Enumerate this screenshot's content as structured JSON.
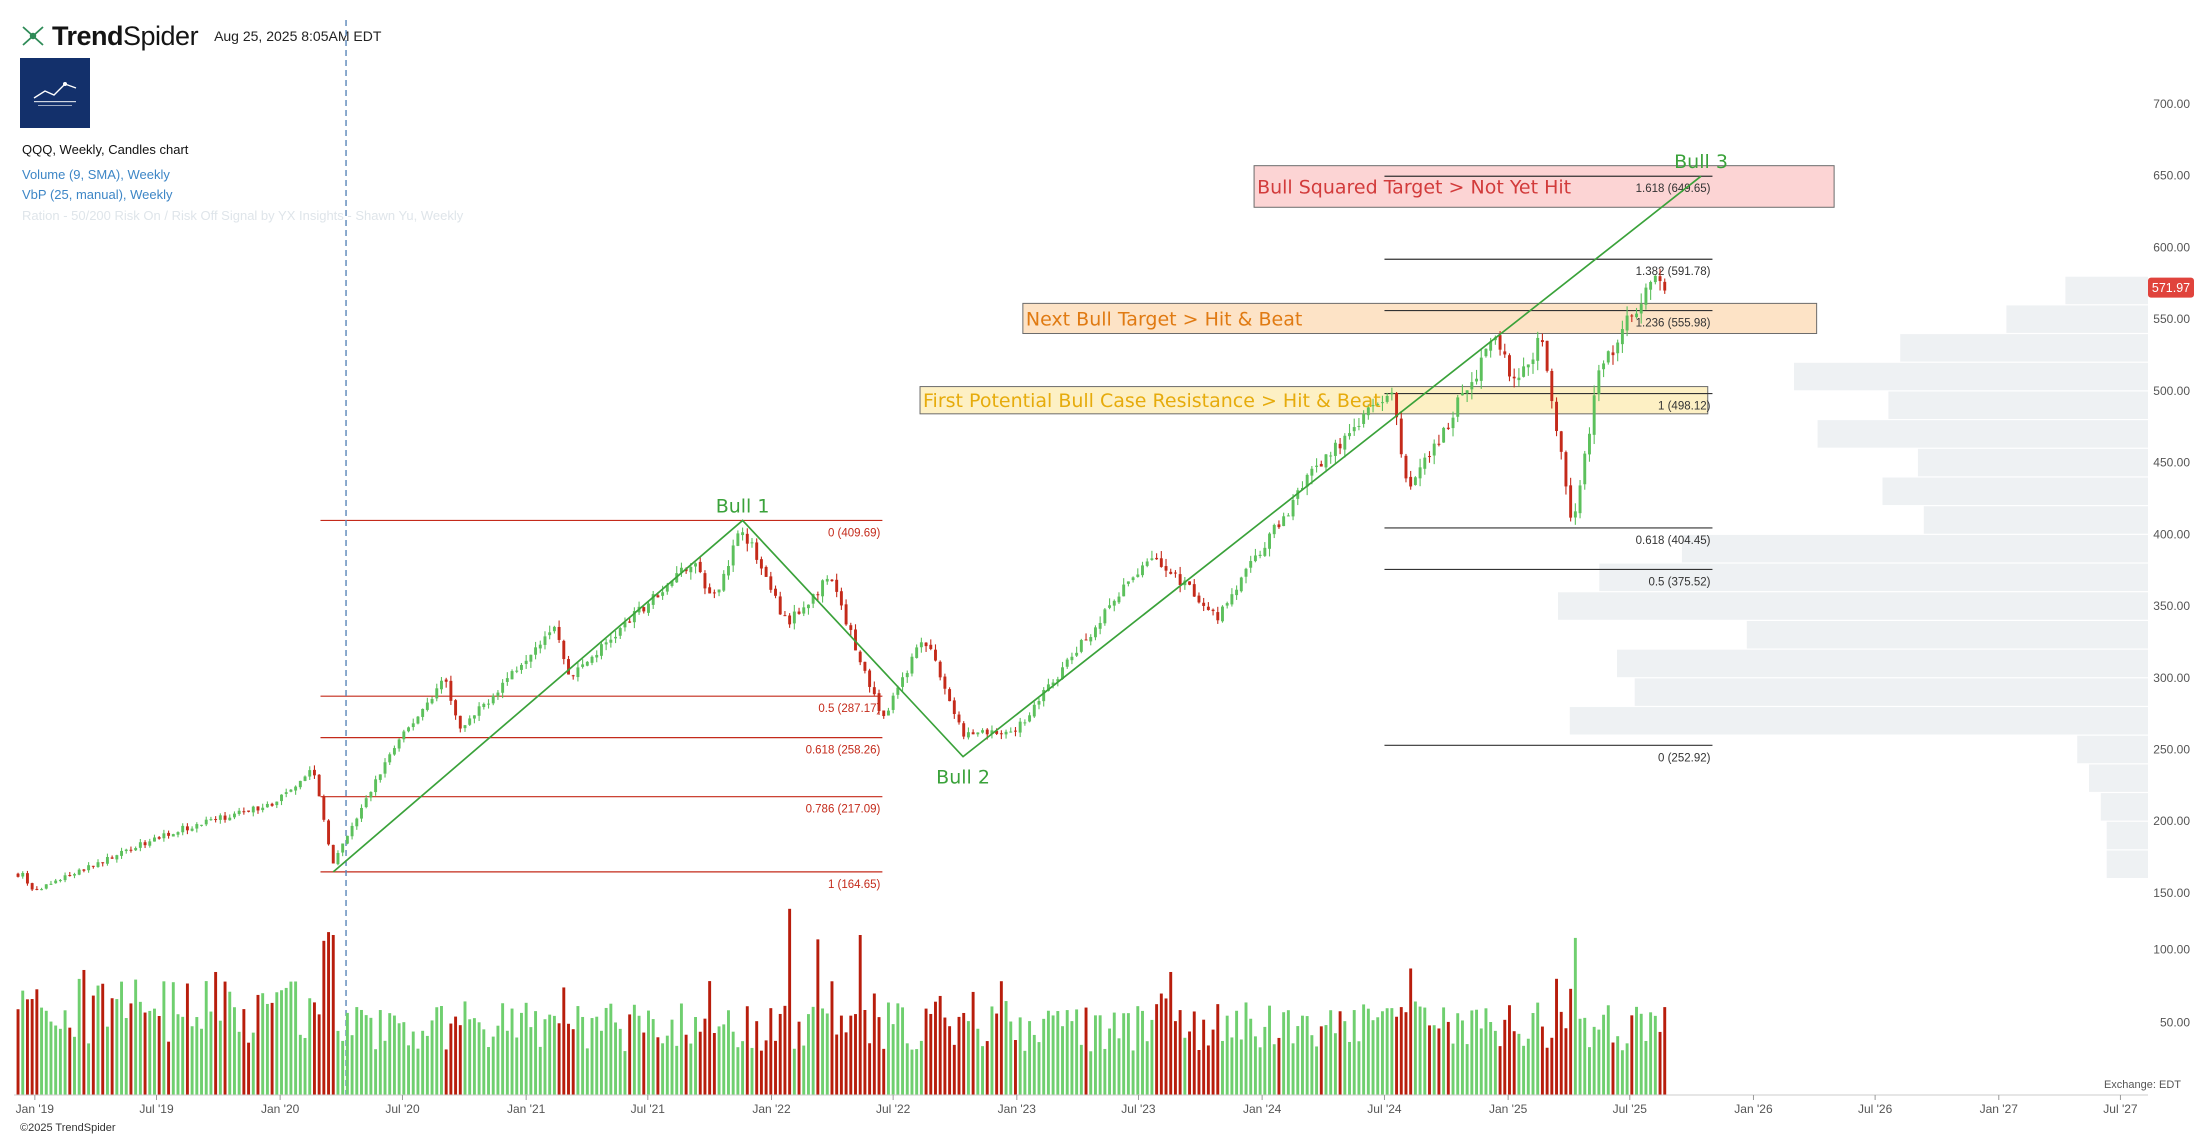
{
  "header": {
    "brand_bold": "Trend",
    "brand_light": "Spider",
    "timestamp": "Aug 25, 2025 8:05AM EDT",
    "chart_title": "QQQ, Weekly, Candles chart",
    "indicators": [
      "Volume (9, SMA), Weekly",
      "VbP (25, manual), Weekly",
      "Ration - 50/200 Risk On / Risk Off Signal by YX Insights - Shawn Yu, Weekly"
    ]
  },
  "footer": {
    "exchange": "Exchange: EDT",
    "copyright": "©2025 TrendSpider"
  },
  "colors": {
    "up": "#5cc05c",
    "down": "#c42a1a",
    "vol_up": "#6fcf6f",
    "vol_down": "#b81d0c",
    "trend": "#3aa23a",
    "fib_red": "#c42a1a",
    "fib_gray": "#333333",
    "vbp": "#eef1f3",
    "price_tag": "#e0433c"
  },
  "chart_data": {
    "type": "candlestick",
    "symbol": "QQQ",
    "interval": "Weekly",
    "x_axis": {
      "ticks": [
        "Jan '19",
        "Jul '19",
        "Jan '20",
        "Jul '20",
        "Jan '21",
        "Jul '21",
        "Jan '22",
        "Jul '22",
        "Jan '23",
        "Jul '23",
        "Jan '24",
        "Jul '24",
        "Jan '25",
        "Jul '25",
        "Jan '26",
        "Jul '26",
        "Jan '27",
        "Jul '27"
      ]
    },
    "y_axis": {
      "range": [
        150,
        700
      ],
      "ticks": [
        "700.00",
        "650.00",
        "600.00",
        "550.00",
        "500.00",
        "450.00",
        "400.00",
        "350.00",
        "300.00",
        "250.00",
        "200.00",
        "150.00"
      ],
      "side": "right"
    },
    "volume_axis": {
      "range": [
        0,
        110
      ],
      "ticks": [
        "100.00",
        "50.00"
      ]
    },
    "last_price": "571.97",
    "price_anchors": [
      {
        "date": "2018-12-15",
        "price": 163
      },
      {
        "date": "2018-12-28",
        "price": 151
      },
      {
        "date": "2019-07-20",
        "price": 192
      },
      {
        "date": "2019-12-20",
        "price": 212
      },
      {
        "date": "2020-02-19",
        "price": 237
      },
      {
        "date": "2020-03-20",
        "price": 170
      },
      {
        "date": "2020-06-10",
        "price": 245
      },
      {
        "date": "2020-09-02",
        "price": 300
      },
      {
        "date": "2020-09-25",
        "price": 262
      },
      {
        "date": "2021-02-12",
        "price": 338
      },
      {
        "date": "2021-03-08",
        "price": 300
      },
      {
        "date": "2021-09-07",
        "price": 383
      },
      {
        "date": "2021-10-04",
        "price": 353
      },
      {
        "date": "2021-11-19",
        "price": 405
      },
      {
        "date": "2022-01-24",
        "price": 337
      },
      {
        "date": "2022-03-29",
        "price": 370
      },
      {
        "date": "2022-06-16",
        "price": 270
      },
      {
        "date": "2022-08-15",
        "price": 330
      },
      {
        "date": "2022-10-13",
        "price": 260
      },
      {
        "date": "2022-12-28",
        "price": 262
      },
      {
        "date": "2023-07-19",
        "price": 386
      },
      {
        "date": "2023-10-27",
        "price": 343
      },
      {
        "date": "2024-03-21",
        "price": 446
      },
      {
        "date": "2024-07-10",
        "price": 502
      },
      {
        "date": "2024-08-05",
        "price": 430
      },
      {
        "date": "2024-12-16",
        "price": 538
      },
      {
        "date": "2025-01-13",
        "price": 502
      },
      {
        "date": "2025-02-19",
        "price": 540
      },
      {
        "date": "2025-04-08",
        "price": 403
      },
      {
        "date": "2025-05-13",
        "price": 508
      },
      {
        "date": "2025-06-30",
        "price": 550
      },
      {
        "date": "2025-08-13",
        "price": 581
      },
      {
        "date": "2025-08-22",
        "price": 571.97
      }
    ],
    "volume_spikes": [
      {
        "date": "2020-03-06",
        "value": 106
      },
      {
        "date": "2020-03-13",
        "value": 112
      },
      {
        "date": "2020-03-20",
        "value": 110
      },
      {
        "date": "2022-01-28",
        "value": 128
      },
      {
        "date": "2022-03-11",
        "value": 107
      },
      {
        "date": "2022-05-13",
        "value": 110
      },
      {
        "date": "2025-04-11",
        "value": 108
      }
    ],
    "fib_set_1": {
      "start_date": "2020-03-01",
      "end_date": "2022-06-15",
      "levels": [
        {
          "ratio": "0",
          "price": 409.69,
          "label": "0 (409.69)"
        },
        {
          "ratio": "0.5",
          "price": 287.17,
          "label": "0.5 (287.17)"
        },
        {
          "ratio": "0.618",
          "price": 258.26,
          "label": "0.618 (258.26)"
        },
        {
          "ratio": "0.786",
          "price": 217.09,
          "label": "0.786 (217.09)"
        },
        {
          "ratio": "1",
          "price": 164.65,
          "label": "1 (164.65)"
        }
      ]
    },
    "fib_set_2": {
      "start_date": "2024-07-01",
      "end_date": "2025-11-01",
      "levels": [
        {
          "ratio": "1.618",
          "price": 649.65,
          "label": "1.618 (649.65)"
        },
        {
          "ratio": "1.382",
          "price": 591.78,
          "label": "1.382 (591.78)"
        },
        {
          "ratio": "1.236",
          "price": 555.98,
          "label": "1.236 (555.98)"
        },
        {
          "ratio": "1",
          "price": 498.12,
          "label": "1 (498.12)"
        },
        {
          "ratio": "0.618",
          "price": 404.45,
          "label": "0.618 (404.45)"
        },
        {
          "ratio": "0.5",
          "price": 375.52,
          "label": "0.5 (375.52)"
        },
        {
          "ratio": "0",
          "price": 252.92,
          "label": "0 (252.92)"
        }
      ]
    },
    "trend_lines": [
      {
        "points": [
          [
            "2020-03-20",
            164.65
          ],
          [
            "2021-11-19",
            409.69
          ],
          [
            "2022-10-13",
            245
          ],
          [
            "2025-10-15",
            649.65
          ]
        ]
      }
    ],
    "annotations": [
      {
        "text": "Bull 1",
        "date": "2021-11-19",
        "price": 409.69
      },
      {
        "text": "Bull 2",
        "date": "2022-10-13",
        "price": 245
      },
      {
        "text": "Bull 3",
        "date": "2025-10-15",
        "price": 649.65
      }
    ],
    "zones": [
      {
        "label": "Bull Squared Target > Not Yet Hit",
        "from_date": "2023-12-20",
        "to_date": "2026-05-01",
        "high": 657,
        "low": 628,
        "fill": "#fcd4d4",
        "text_color": "#d23b3b"
      },
      {
        "label": "Next Bull Target > Hit & Beat",
        "from_date": "2023-01-10",
        "to_date": "2026-04-05",
        "high": 561,
        "low": 540,
        "fill": "#fde3c6",
        "text_color": "#e07a12"
      },
      {
        "label": "First Potential Bull Case Resistance > Hit & Beat",
        "from_date": "2022-08-10",
        "to_date": "2025-10-25",
        "high": 503,
        "low": 484,
        "fill": "#fdf0c4",
        "text_color": "#e6ab0c"
      }
    ],
    "volume_by_price": [
      {
        "price_low": 560,
        "price_high": 580,
        "volume": 0.14
      },
      {
        "price_low": 540,
        "price_high": 560,
        "volume": 0.24
      },
      {
        "price_low": 520,
        "price_high": 540,
        "volume": 0.42
      },
      {
        "price_low": 500,
        "price_high": 520,
        "volume": 0.6
      },
      {
        "price_low": 480,
        "price_high": 500,
        "volume": 0.44
      },
      {
        "price_low": 460,
        "price_high": 480,
        "volume": 0.56
      },
      {
        "price_low": 440,
        "price_high": 460,
        "volume": 0.39
      },
      {
        "price_low": 420,
        "price_high": 440,
        "volume": 0.45
      },
      {
        "price_low": 400,
        "price_high": 420,
        "volume": 0.38
      },
      {
        "price_low": 380,
        "price_high": 400,
        "volume": 0.79
      },
      {
        "price_low": 360,
        "price_high": 380,
        "volume": 0.93
      },
      {
        "price_low": 340,
        "price_high": 360,
        "volume": 1.0
      },
      {
        "price_low": 320,
        "price_high": 340,
        "volume": 0.68
      },
      {
        "price_low": 300,
        "price_high": 320,
        "volume": 0.9
      },
      {
        "price_low": 280,
        "price_high": 300,
        "volume": 0.87
      },
      {
        "price_low": 260,
        "price_high": 280,
        "volume": 0.98
      },
      {
        "price_low": 240,
        "price_high": 260,
        "volume": 0.12
      },
      {
        "price_low": 220,
        "price_high": 240,
        "volume": 0.1
      },
      {
        "price_low": 200,
        "price_high": 220,
        "volume": 0.08
      },
      {
        "price_low": 180,
        "price_high": 200,
        "volume": 0.07
      },
      {
        "price_low": 160,
        "price_high": 180,
        "volume": 0.07
      }
    ]
  }
}
